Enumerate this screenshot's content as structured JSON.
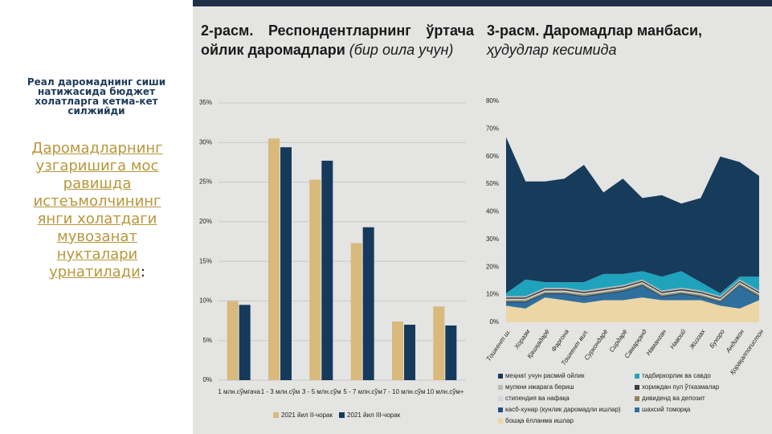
{
  "slide": {
    "lead": "Реал даромаднинг сиши натижасида бюджет холатларга кетма-кет силжийди",
    "body": "Даромадларнинг узгаришига мос равишда истеъмолчининг янги холатдаги мувозанат нукталари урнатилади",
    "body_end": ":"
  },
  "chart_data": [
    {
      "type": "bar",
      "title": "2-расм. Респондентларнинг ўртача ойлик даромадлари",
      "subtitle": "(бир оила учун)",
      "categories": [
        "1 млн.сўмгача",
        "1 - 3 млн.сўм",
        "3 - 5 млн.сўм",
        "5 - 7 млн.сўм",
        "7 - 10 млн.сўм",
        "10 млн.сўм+"
      ],
      "series": [
        {
          "name": "2021 йил II-чорак",
          "color": "#d9b97c",
          "values": [
            10,
            30.5,
            25.3,
            17.3,
            7.4,
            9.3
          ]
        },
        {
          "name": "2021 йил III-чорак",
          "color": "#163a5c",
          "values": [
            9.5,
            29.4,
            27.7,
            19.3,
            7,
            6.9
          ]
        }
      ],
      "ylim": [
        0,
        35
      ],
      "yticks": [
        {
          "value": 0,
          "label": "0%"
        },
        {
          "value": 5,
          "label": "5%"
        },
        {
          "value": 10,
          "label": "10%"
        },
        {
          "value": 15,
          "label": "15%"
        },
        {
          "value": 20,
          "label": "20%"
        },
        {
          "value": 25,
          "label": "25%"
        },
        {
          "value": 30,
          "label": "30%"
        },
        {
          "value": 35,
          "label": "35%"
        }
      ],
      "grid": true
    },
    {
      "type": "stacked_area",
      "title": "3-расм. Даромадлар манбаси,",
      "subtitle": "ҳудудлар кесимида",
      "categories": [
        "Тошкент ш.",
        "Хоразм",
        "Қашқадарё",
        "Фарғона",
        "Тошкент вил.",
        "Сурхондарё",
        "Сирдарё",
        "Самарқанд",
        "Наманган",
        "Навоий",
        "Жиззах",
        "Бухоро",
        "Андижон",
        "Қорақалпоғистон"
      ],
      "series": [
        {
          "name": "меҳнат учун расмий ойлик",
          "color": "#173b5a",
          "values": [
            56.5,
            35.5,
            36.5,
            37.5,
            42.5,
            29.5,
            34.5,
            26.5,
            29.5,
            24.5,
            30.5,
            49.5,
            41.5,
            36.5
          ]
        },
        {
          "name": "тадбиркорлик ва савдо",
          "color": "#1fa3bd",
          "values": [
            1,
            6,
            2,
            2,
            3,
            5,
            4,
            3,
            5,
            6,
            3,
            1,
            1,
            5
          ]
        },
        {
          "name": "мулкни ижарага бериш",
          "color": "#b9b9b9",
          "values": [
            0.5,
            0.5,
            0.5,
            0.5,
            0.5,
            0.5,
            0.5,
            0.5,
            0.5,
            0.5,
            0.5,
            0.5,
            0.5,
            0.5
          ]
        },
        {
          "name": "хориждан пул ўтказмалар",
          "color": "#3d3d3d",
          "values": [
            0.5,
            0.5,
            0.5,
            0.5,
            0.5,
            0.5,
            0.5,
            0.5,
            0.5,
            0.5,
            0.5,
            0.5,
            0.5,
            0.5
          ]
        },
        {
          "name": "стипендия ва нафақа",
          "color": "#d4d4d4",
          "values": [
            0.5,
            0.5,
            0.5,
            0.5,
            0.5,
            0.5,
            0.5,
            0.5,
            0.5,
            0.5,
            0.5,
            0.5,
            0.5,
            0.5
          ]
        },
        {
          "name": "дивиденд ва депозит",
          "color": "#8c8458",
          "values": [
            0.5,
            0.5,
            0.5,
            0.5,
            0.5,
            0.5,
            0.5,
            0.5,
            0.5,
            0.5,
            0.5,
            0.5,
            0.5,
            0.5
          ]
        },
        {
          "name": "касб-хунар (кунлик даромадли ишлар)",
          "color": "#1f4f7a",
          "values": [
            0.5,
            0.5,
            0.5,
            0.5,
            0.5,
            0.5,
            0.5,
            0.5,
            0.5,
            0.5,
            0.5,
            0.5,
            0.5,
            0.5
          ]
        },
        {
          "name": "шахсий томорқа",
          "color": "#2f6f9e",
          "values": [
            1,
            2,
            1,
            2,
            2,
            2,
            3,
            4,
            1,
            2,
            1,
            1,
            8,
            1
          ]
        },
        {
          "name": "бошқа ёлланма ишлар",
          "color": "#ecd6a6",
          "values": [
            6,
            5,
            9,
            8,
            7,
            8,
            8,
            9,
            8,
            8,
            8,
            6,
            5,
            8
          ]
        }
      ],
      "ylim": [
        0,
        80
      ],
      "yticks": [
        {
          "value": 0,
          "label": "0%"
        },
        {
          "value": 10,
          "label": "10%"
        },
        {
          "value": 20,
          "label": "20%"
        },
        {
          "value": 30,
          "label": "30%"
        },
        {
          "value": 40,
          "label": "40%"
        },
        {
          "value": 50,
          "label": "50%"
        },
        {
          "value": 60,
          "label": "60%"
        },
        {
          "value": 70,
          "label": "70%"
        },
        {
          "value": 80,
          "label": "80%"
        }
      ]
    }
  ]
}
